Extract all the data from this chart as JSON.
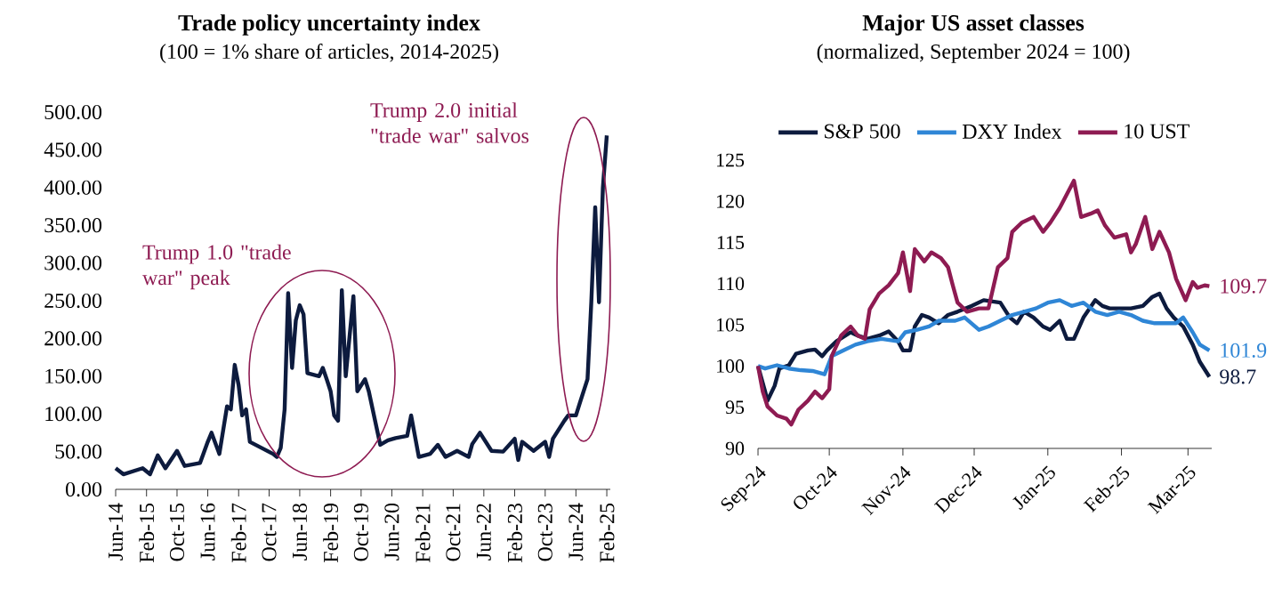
{
  "chart_data": [
    {
      "type": "line",
      "title": "Trade policy uncertainty index",
      "subtitle": "(100 = 1% share of articles, 2014-2025)",
      "x": [
        "2014-06",
        "2014-08",
        "2015-01",
        "2015-03",
        "2015-05",
        "2015-07",
        "2015-10",
        "2015-12",
        "2016-04",
        "2016-06",
        "2016-07",
        "2016-09",
        "2016-11",
        "2016-12",
        "2017-01",
        "2017-02",
        "2017-03",
        "2017-04",
        "2017-05",
        "2017-08",
        "2017-11",
        "2017-12",
        "2018-01",
        "2018-02",
        "2018-03",
        "2018-04",
        "2018-05",
        "2018-06",
        "2018-07",
        "2018-08",
        "2018-11",
        "2018-12",
        "2019-01",
        "2019-02",
        "2019-03",
        "2019-04",
        "2019-05",
        "2019-06",
        "2019-08",
        "2019-09",
        "2019-11",
        "2019-12",
        "2020-03",
        "2020-05",
        "2020-07",
        "2020-10",
        "2020-11",
        "2021-01",
        "2021-04",
        "2021-06",
        "2021-08",
        "2021-11",
        "2022-02",
        "2022-03",
        "2022-05",
        "2022-08",
        "2022-11",
        "2023-02",
        "2023-03",
        "2023-04",
        "2023-07",
        "2023-10",
        "2023-11",
        "2023-12",
        "2024-03",
        "2024-04",
        "2024-06",
        "2024-07",
        "2024-09",
        "2024-10",
        "2024-11",
        "2024-12",
        "2025-01",
        "2025-02"
      ],
      "series": [
        {
          "color": "#0d1b3e",
          "values": [
            28,
            20,
            28,
            20,
            45,
            28,
            51,
            31,
            35,
            63,
            75,
            47,
            110,
            106,
            165,
            138,
            98,
            106,
            63,
            55,
            47,
            43,
            55,
            106,
            260,
            161,
            224,
            244,
            232,
            154,
            150,
            161,
            146,
            130,
            98,
            91,
            264,
            150,
            256,
            130,
            146,
            130,
            59,
            65,
            68,
            71,
            98,
            43,
            47,
            59,
            43,
            51,
            43,
            60,
            75,
            51,
            50,
            67,
            39,
            63,
            51,
            63,
            43,
            67,
            91,
            98,
            98,
            114,
            146,
            248,
            374,
            248,
            400,
            469
          ]
        }
      ],
      "xlim": [
        "2014-06",
        "2025-03"
      ],
      "xticks": [
        {
          "value": "2014-06",
          "label": "Jun-14"
        },
        {
          "value": "2015-02",
          "label": "Feb-15"
        },
        {
          "value": "2015-10",
          "label": "Oct-15"
        },
        {
          "value": "2016-06",
          "label": "Jun-16"
        },
        {
          "value": "2017-02",
          "label": "Feb-17"
        },
        {
          "value": "2017-10",
          "label": "Oct-17"
        },
        {
          "value": "2018-06",
          "label": "Jun-18"
        },
        {
          "value": "2019-02",
          "label": "Feb-19"
        },
        {
          "value": "2019-10",
          "label": "Oct-19"
        },
        {
          "value": "2020-06",
          "label": "Jun-20"
        },
        {
          "value": "2021-02",
          "label": "Feb-21"
        },
        {
          "value": "2021-10",
          "label": "Oct-21"
        },
        {
          "value": "2022-06",
          "label": "Jun-22"
        },
        {
          "value": "2023-02",
          "label": "Feb-23"
        },
        {
          "value": "2023-10",
          "label": "Oct-23"
        },
        {
          "value": "2024-06",
          "label": "Jun-24"
        },
        {
          "value": "2025-02",
          "label": "Feb-25"
        }
      ],
      "ylim": [
        0,
        500
      ],
      "yticks": [
        {
          "value": 0,
          "label": "0.00"
        },
        {
          "value": 50,
          "label": "50.00"
        },
        {
          "value": 100,
          "label": "100.00"
        },
        {
          "value": 150,
          "label": "150.00"
        },
        {
          "value": 200,
          "label": "200.00"
        },
        {
          "value": 250,
          "label": "250.00"
        },
        {
          "value": 300,
          "label": "300.00"
        },
        {
          "value": 350,
          "label": "350.00"
        },
        {
          "value": 400,
          "label": "400.00"
        },
        {
          "value": 450,
          "label": "450.00"
        },
        {
          "value": 500,
          "label": "500.00"
        }
      ],
      "annotations": [
        "Trump 1.0 \"trade war\" peak",
        "Trump 2.0 initial \"trade war\" salvos"
      ]
    },
    {
      "type": "line",
      "title": "Major US asset classes",
      "subtitle": "(normalized, September 2024 = 100)",
      "series": [
        {
          "name": "S&P 500",
          "color": "#0d1b3e",
          "x": [
            "2024-09-01",
            "2024-09-04",
            "2024-09-05",
            "2024-09-08",
            "2024-09-10",
            "2024-09-14",
            "2024-09-17",
            "2024-09-22",
            "2024-09-25",
            "2024-09-28",
            "2024-09-30",
            "2024-10-04",
            "2024-10-10",
            "2024-10-13",
            "2024-10-17",
            "2024-10-22",
            "2024-10-26",
            "2024-10-30",
            "2024-11-01",
            "2024-11-04",
            "2024-11-06",
            "2024-11-09",
            "2024-11-12",
            "2024-11-16",
            "2024-11-20",
            "2024-11-24",
            "2024-11-30",
            "2024-12-05",
            "2024-12-12",
            "2024-12-16",
            "2024-12-19",
            "2024-12-22",
            "2024-12-26",
            "2024-12-30",
            "2025-01-02",
            "2025-01-06",
            "2025-01-09",
            "2025-01-12",
            "2025-01-16",
            "2025-01-21",
            "2025-01-24",
            "2025-01-27",
            "2025-01-31",
            "2025-02-05",
            "2025-02-10",
            "2025-02-14",
            "2025-02-17",
            "2025-02-20",
            "2025-02-23",
            "2025-02-27",
            "2025-03-03",
            "2025-03-06",
            "2025-03-10"
          ],
          "values": [
            100,
            96.9,
            95.8,
            97.6,
            99.7,
            100.1,
            101.5,
            101.9,
            102,
            101.2,
            101.9,
            103,
            104.1,
            103.7,
            103.3,
            103.7,
            104.2,
            103,
            101.9,
            101.9,
            104.8,
            106.2,
            105.9,
            105.2,
            106.2,
            106.6,
            107.3,
            108,
            107.7,
            105.9,
            105.2,
            106.6,
            105.9,
            104.8,
            104.4,
            105.5,
            103.3,
            103.3,
            105.9,
            108,
            107.3,
            107,
            107,
            107,
            107.3,
            108.4,
            108.8,
            107,
            105.9,
            104.8,
            102.6,
            100.5,
            98.7
          ],
          "value_labels": [
            null,
            null,
            null,
            null,
            null,
            null,
            null,
            null,
            null,
            null,
            null,
            null,
            null,
            null,
            null,
            null,
            null,
            null,
            null,
            null,
            null,
            null,
            null,
            null,
            null,
            null,
            null,
            null,
            null,
            null,
            null,
            null,
            null,
            null,
            null,
            null,
            null,
            null,
            null,
            null,
            null,
            null,
            null,
            null,
            null,
            null,
            null,
            null,
            null,
            null,
            null,
            null,
            "98.7"
          ]
        },
        {
          "name": "DXY Index",
          "color": "#2f86d6",
          "x": [
            "2024-09-01",
            "2024-09-04",
            "2024-09-09",
            "2024-09-14",
            "2024-09-19",
            "2024-09-24",
            "2024-09-29",
            "2024-10-02",
            "2024-10-07",
            "2024-10-12",
            "2024-10-17",
            "2024-10-23",
            "2024-10-30",
            "2024-11-02",
            "2024-11-07",
            "2024-11-12",
            "2024-11-16",
            "2024-11-20",
            "2024-11-23",
            "2024-11-27",
            "2024-12-03",
            "2024-12-07",
            "2024-12-12",
            "2024-12-17",
            "2024-12-22",
            "2024-12-27",
            "2025-01-01",
            "2025-01-06",
            "2025-01-11",
            "2025-01-16",
            "2025-01-21",
            "2025-01-26",
            "2025-01-31",
            "2025-02-05",
            "2025-02-10",
            "2025-02-15",
            "2025-02-20",
            "2025-02-24",
            "2025-02-27",
            "2025-03-03",
            "2025-03-06",
            "2025-03-10"
          ],
          "values": [
            100,
            99.7,
            100.1,
            99.7,
            99.5,
            99.4,
            99,
            101.2,
            101.9,
            102.6,
            103,
            103.3,
            103,
            104.1,
            104.4,
            104.8,
            105.5,
            105.5,
            105.5,
            105.9,
            104.4,
            104.8,
            105.5,
            106.2,
            106.6,
            107,
            107.7,
            108,
            107.3,
            107.7,
            106.6,
            106.2,
            106.6,
            106.2,
            105.5,
            105.2,
            105.2,
            105.2,
            105.9,
            104.1,
            102.6,
            101.9
          ],
          "value_labels": [
            null,
            null,
            null,
            null,
            null,
            null,
            null,
            null,
            null,
            null,
            null,
            null,
            null,
            null,
            null,
            null,
            null,
            null,
            null,
            null,
            null,
            null,
            null,
            null,
            null,
            null,
            null,
            null,
            null,
            null,
            null,
            null,
            null,
            null,
            null,
            null,
            null,
            null,
            null,
            null,
            null,
            "101.9"
          ]
        },
        {
          "name": "10 UST",
          "color": "#8e1b52",
          "x": [
            "2024-09-01",
            "2024-09-03",
            "2024-09-05",
            "2024-09-09",
            "2024-09-13",
            "2024-09-15",
            "2024-09-18",
            "2024-09-22",
            "2024-09-25",
            "2024-09-28",
            "2024-10-01",
            "2024-10-02",
            "2024-10-06",
            "2024-10-10",
            "2024-10-13",
            "2024-10-16",
            "2024-10-18",
            "2024-10-22",
            "2024-10-26",
            "2024-10-30",
            "2024-11-01",
            "2024-11-04",
            "2024-11-06",
            "2024-11-10",
            "2024-11-13",
            "2024-11-17",
            "2024-11-20",
            "2024-11-22",
            "2024-11-24",
            "2024-11-28",
            "2024-12-03",
            "2024-12-07",
            "2024-12-11",
            "2024-12-15",
            "2024-12-17",
            "2024-12-21",
            "2024-12-26",
            "2024-12-30",
            "2025-01-02",
            "2025-01-06",
            "2025-01-10",
            "2025-01-12",
            "2025-01-15",
            "2025-01-19",
            "2025-01-22",
            "2025-01-25",
            "2025-01-29",
            "2025-02-03",
            "2025-02-05",
            "2025-02-07",
            "2025-02-11",
            "2025-02-14",
            "2025-02-17",
            "2025-02-21",
            "2025-02-24",
            "2025-02-28",
            "2025-03-03",
            "2025-03-05",
            "2025-03-08",
            "2025-03-10"
          ],
          "values": [
            100,
            96.9,
            95.1,
            94,
            93.6,
            92.9,
            94.7,
            95.8,
            96.9,
            96.1,
            97.2,
            101.2,
            103.7,
            104.8,
            103.7,
            103.3,
            106.9,
            108.8,
            109.8,
            111.3,
            113.8,
            109.1,
            114.2,
            112.7,
            113.8,
            113.1,
            112,
            109.8,
            107.7,
            106.6,
            107,
            107,
            112,
            113.1,
            116.3,
            117.4,
            118.1,
            116.3,
            117.4,
            119.2,
            121.4,
            122.5,
            118.1,
            118.5,
            118.9,
            117.1,
            115.6,
            116,
            113.8,
            114.8,
            118.1,
            114.2,
            116.3,
            113.8,
            110.6,
            108,
            110.2,
            109.5,
            109.8,
            109.7
          ],
          "value_labels": [
            null,
            null,
            null,
            null,
            null,
            null,
            null,
            null,
            null,
            null,
            null,
            null,
            null,
            null,
            null,
            null,
            null,
            null,
            null,
            null,
            null,
            null,
            null,
            null,
            null,
            null,
            null,
            null,
            null,
            null,
            null,
            null,
            null,
            null,
            null,
            null,
            null,
            null,
            null,
            null,
            null,
            null,
            null,
            null,
            null,
            null,
            null,
            null,
            null,
            null,
            null,
            null,
            null,
            null,
            null,
            null,
            null,
            null,
            null,
            "109.7"
          ]
        }
      ],
      "xlim": [
        "2024-09-01",
        "2025-03-11"
      ],
      "xticks": [
        {
          "value": "2024-09-01",
          "label": "Sep-24"
        },
        {
          "value": "2024-10-01",
          "label": "Oct-24"
        },
        {
          "value": "2024-11-01",
          "label": "Nov-24"
        },
        {
          "value": "2024-12-01",
          "label": "Dec-24"
        },
        {
          "value": "2025-01-01",
          "label": "Jan-25"
        },
        {
          "value": "2025-02-01",
          "label": "Feb-25"
        },
        {
          "value": "2025-03-01",
          "label": "Mar-25"
        }
      ],
      "ylim": [
        90,
        125
      ],
      "yticks": [
        90,
        95,
        100,
        105,
        110,
        115,
        120,
        125
      ],
      "legend": "top"
    }
  ]
}
